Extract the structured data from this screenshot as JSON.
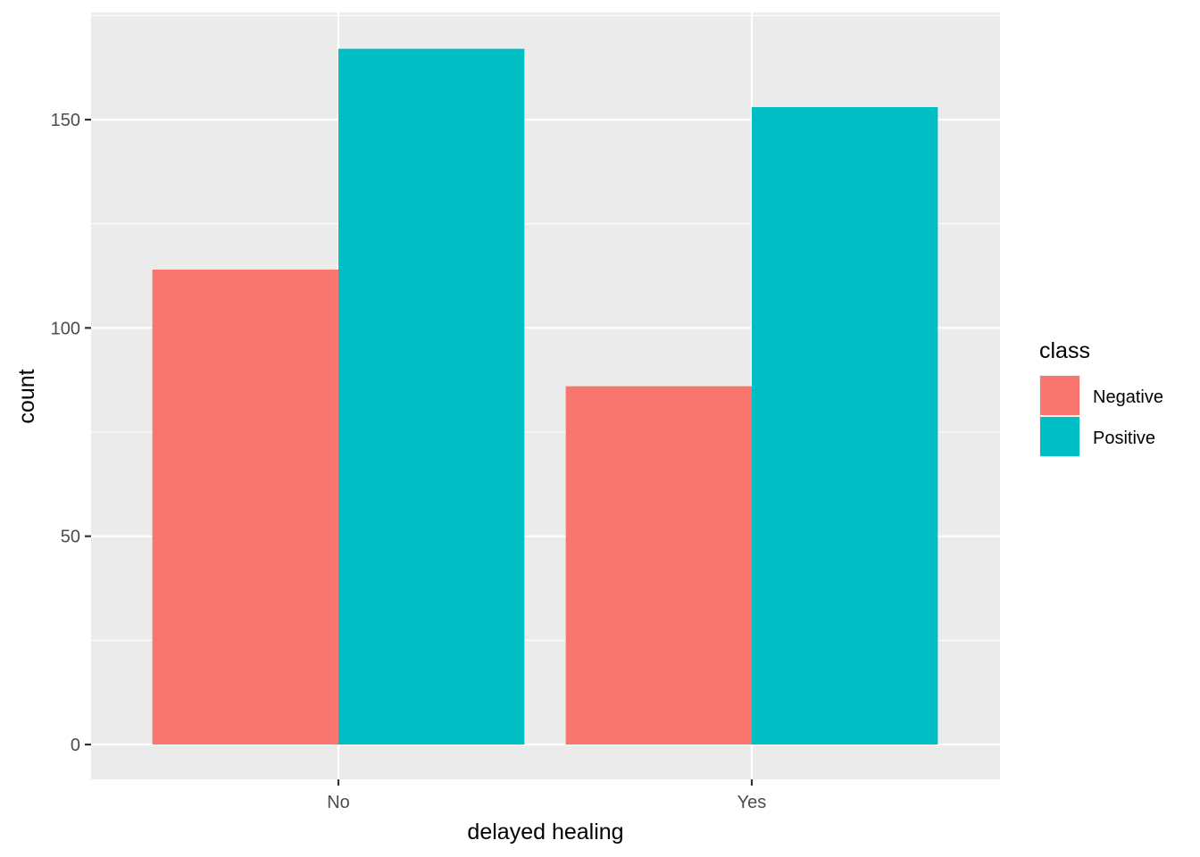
{
  "chart_data": {
    "type": "bar",
    "xlabel": "delayed healing",
    "ylabel": "count",
    "categories": [
      "No",
      "Yes"
    ],
    "series": [
      {
        "name": "Negative",
        "values": [
          114,
          86
        ],
        "color": "#F8766D"
      },
      {
        "name": "Positive",
        "values": [
          167,
          153
        ],
        "color": "#00BFC4"
      }
    ],
    "ylim": [
      -8,
      175
    ],
    "yticks": [
      0,
      50,
      100,
      150
    ],
    "ytick_labels": [
      "0",
      "50",
      "100",
      "150"
    ],
    "grid": true,
    "panel_background": "#EBEBEB",
    "gridline_color": "#FFFFFF",
    "legend": {
      "title": "class",
      "position": "right"
    }
  }
}
